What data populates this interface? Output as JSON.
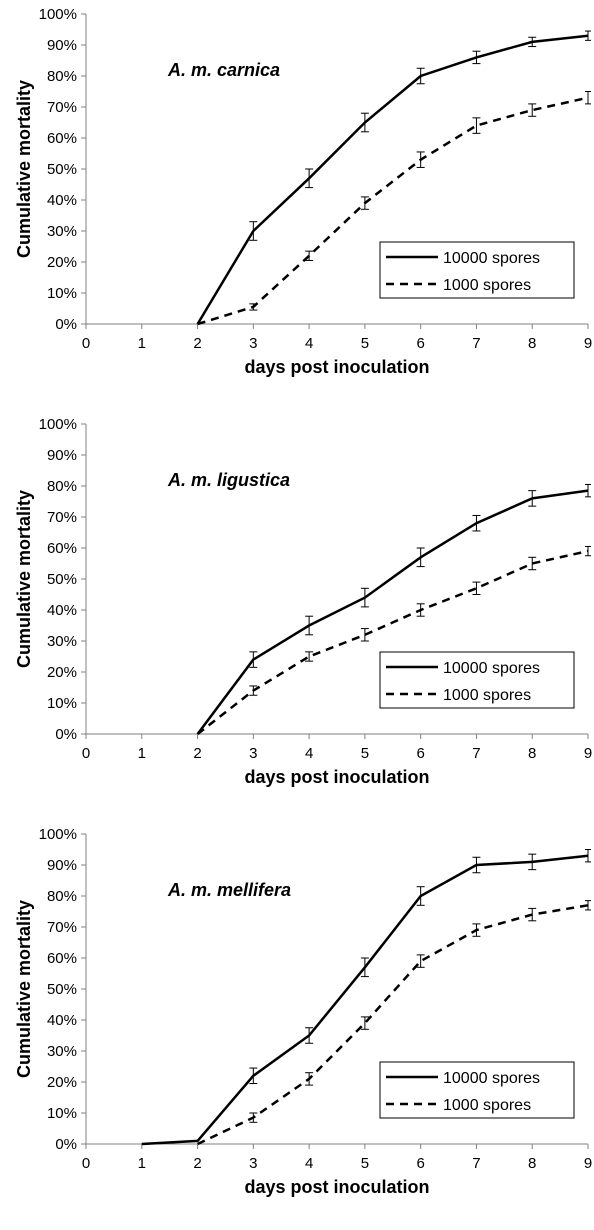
{
  "chart_data": [
    {
      "type": "line",
      "title": "A. m. carnica",
      "xlabel": "days post inoculation",
      "ylabel": "Cumulative mortality",
      "xlim": [
        0,
        9
      ],
      "ylim": [
        0,
        100
      ],
      "x_ticks": [
        "0",
        "1",
        "2",
        "3",
        "4",
        "5",
        "6",
        "7",
        "8",
        "9"
      ],
      "y_ticks": [
        "0%",
        "10%",
        "20%",
        "30%",
        "40%",
        "50%",
        "60%",
        "70%",
        "80%",
        "90%",
        "100%"
      ],
      "legend_position": "bottom-right",
      "grid": false,
      "series": [
        {
          "name": "10000 spores",
          "style": "solid",
          "x": [
            2,
            3,
            4,
            5,
            6,
            7,
            8,
            9
          ],
          "values": [
            0,
            30,
            47,
            65,
            80,
            86,
            91,
            93
          ],
          "error": [
            0,
            3,
            3,
            3,
            2.5,
            2,
            1.5,
            1.5
          ]
        },
        {
          "name": "1000 spores",
          "style": "dashed",
          "x": [
            2,
            3,
            4,
            5,
            6,
            7,
            8,
            9
          ],
          "values": [
            0,
            5.5,
            22,
            39,
            53,
            64,
            69,
            73
          ],
          "error": [
            0,
            1,
            1.5,
            2,
            2.5,
            2.5,
            2,
            2
          ]
        }
      ]
    },
    {
      "type": "line",
      "title": "A. m. ligustica",
      "xlabel": "days post inoculation",
      "ylabel": "Cumulative mortality",
      "xlim": [
        0,
        9
      ],
      "ylim": [
        0,
        100
      ],
      "x_ticks": [
        "0",
        "1",
        "2",
        "3",
        "4",
        "5",
        "6",
        "7",
        "8",
        "9"
      ],
      "y_ticks": [
        "0%",
        "10%",
        "20%",
        "30%",
        "40%",
        "50%",
        "60%",
        "70%",
        "80%",
        "90%",
        "100%"
      ],
      "legend_position": "bottom-right",
      "grid": false,
      "series": [
        {
          "name": "10000 spores",
          "style": "solid",
          "x": [
            2,
            3,
            4,
            5,
            6,
            7,
            8,
            9
          ],
          "values": [
            0,
            24,
            35,
            44,
            57,
            68,
            76,
            78.5
          ],
          "error": [
            0,
            2.5,
            3,
            3,
            3,
            2.5,
            2.5,
            2
          ]
        },
        {
          "name": "1000 spores",
          "style": "dashed",
          "x": [
            2,
            3,
            4,
            5,
            6,
            7,
            8,
            9
          ],
          "values": [
            0,
            14,
            25,
            32,
            40,
            47,
            55,
            59
          ],
          "error": [
            0,
            1.5,
            1.5,
            2,
            2,
            2,
            2,
            1.5
          ]
        }
      ]
    },
    {
      "type": "line",
      "title": "A. m. mellifera",
      "xlabel": "days post inoculation",
      "ylabel": "Cumulative mortality",
      "xlim": [
        0,
        9
      ],
      "ylim": [
        0,
        100
      ],
      "x_ticks": [
        "0",
        "1",
        "2",
        "3",
        "4",
        "5",
        "6",
        "7",
        "8",
        "9"
      ],
      "y_ticks": [
        "0%",
        "10%",
        "20%",
        "30%",
        "40%",
        "50%",
        "60%",
        "70%",
        "80%",
        "90%",
        "100%"
      ],
      "legend_position": "bottom-right",
      "grid": false,
      "series": [
        {
          "name": "10000 spores",
          "style": "solid",
          "x": [
            1,
            2,
            3,
            4,
            5,
            6,
            7,
            8,
            9
          ],
          "values": [
            0,
            1,
            22,
            35,
            57,
            80,
            90,
            91,
            93
          ],
          "error": [
            0,
            0,
            2.5,
            2.5,
            3,
            3,
            2.5,
            2.5,
            2
          ]
        },
        {
          "name": "1000 spores",
          "style": "dashed",
          "x": [
            2,
            3,
            4,
            5,
            6,
            7,
            8,
            9
          ],
          "values": [
            0,
            8.5,
            21,
            39,
            59,
            69,
            74,
            77
          ],
          "error": [
            0,
            1.5,
            2,
            2,
            2,
            2,
            2,
            1.5
          ]
        }
      ]
    }
  ]
}
